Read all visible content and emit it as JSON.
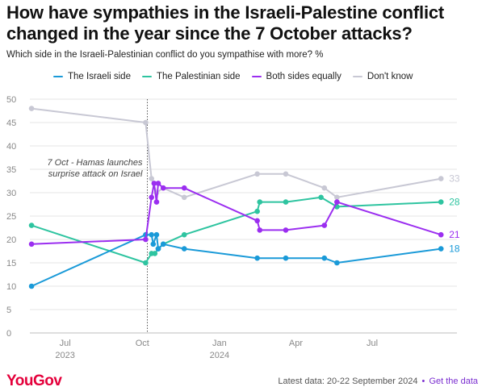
{
  "title": "How have sympathies in the Israeli-Palestine conflict changed in the year since the 7 October attacks?",
  "subtitle": "Which side in the Israeli-Palestinian conflict do you sympathise with more? %",
  "footer": {
    "logo_text": "YouGov",
    "logo_color": "#e4003b",
    "latest_data": "Latest data: 20-22 September 2024",
    "separator": "•",
    "link_text": "Get the data"
  },
  "colors": {
    "accent": "#7b2fd0"
  },
  "chart_data": {
    "type": "line",
    "ylim": [
      0,
      50
    ],
    "yticks": [
      0,
      5,
      10,
      15,
      20,
      25,
      30,
      35,
      40,
      45,
      50
    ],
    "xlim": [
      "2023-05-20",
      "2024-10-10"
    ],
    "xticks": [
      {
        "date": "2023-07-01",
        "label": "Jul",
        "year": "2023"
      },
      {
        "date": "2023-10-01",
        "label": "Oct",
        "year": ""
      },
      {
        "date": "2024-01-01",
        "label": "Jan",
        "year": "2024"
      },
      {
        "date": "2024-04-01",
        "label": "Apr",
        "year": ""
      },
      {
        "date": "2024-07-01",
        "label": "Jul",
        "year": ""
      }
    ],
    "grid": true,
    "legend_position": "top",
    "annotation": {
      "date": "2023-10-07",
      "lines": [
        "7 Oct - Hamas launches",
        "surprise attack on Israel"
      ]
    },
    "series": [
      {
        "name": "The Israeli side",
        "color": "#1a9ad8",
        "end_label": "18",
        "points": [
          [
            "2023-05-22",
            10
          ],
          [
            "2023-10-05",
            21
          ],
          [
            "2023-10-12",
            21
          ],
          [
            "2023-10-14",
            19
          ],
          [
            "2023-10-18",
            21
          ],
          [
            "2023-10-20",
            18
          ],
          [
            "2023-10-26",
            19
          ],
          [
            "2023-11-20",
            18
          ],
          [
            "2024-02-15",
            16
          ],
          [
            "2024-03-20",
            16
          ],
          [
            "2024-05-05",
            16
          ],
          [
            "2024-05-20",
            15
          ],
          [
            "2024-09-21",
            18
          ]
        ]
      },
      {
        "name": "The Palestinian side",
        "color": "#2ec4a0",
        "end_label": "28",
        "points": [
          [
            "2023-05-22",
            23
          ],
          [
            "2023-10-05",
            15
          ],
          [
            "2023-10-12",
            17
          ],
          [
            "2023-10-16",
            17
          ],
          [
            "2023-10-20",
            18
          ],
          [
            "2023-10-26",
            19
          ],
          [
            "2023-11-20",
            21
          ],
          [
            "2024-02-15",
            26
          ],
          [
            "2024-02-18",
            28
          ],
          [
            "2024-03-20",
            28
          ],
          [
            "2024-05-01",
            29
          ],
          [
            "2024-05-20",
            27
          ],
          [
            "2024-09-21",
            28
          ]
        ]
      },
      {
        "name": "Both sides equally",
        "color": "#9b2ef0",
        "end_label": "21",
        "points": [
          [
            "2023-05-22",
            19
          ],
          [
            "2023-10-05",
            20
          ],
          [
            "2023-10-12",
            29
          ],
          [
            "2023-10-15",
            32
          ],
          [
            "2023-10-18",
            28
          ],
          [
            "2023-10-20",
            32
          ],
          [
            "2023-10-26",
            31
          ],
          [
            "2023-11-20",
            31
          ],
          [
            "2024-02-15",
            24
          ],
          [
            "2024-02-18",
            22
          ],
          [
            "2024-03-20",
            22
          ],
          [
            "2024-05-05",
            23
          ],
          [
            "2024-05-20",
            28
          ],
          [
            "2024-09-21",
            21
          ]
        ]
      },
      {
        "name": "Don't know",
        "color": "#c8c8d4",
        "end_label": "33",
        "points": [
          [
            "2023-05-22",
            48
          ],
          [
            "2023-10-05",
            45
          ],
          [
            "2023-10-12",
            33
          ],
          [
            "2023-10-18",
            30
          ],
          [
            "2023-10-26",
            31
          ],
          [
            "2023-11-20",
            29
          ],
          [
            "2024-02-15",
            34
          ],
          [
            "2024-03-20",
            34
          ],
          [
            "2024-05-05",
            31
          ],
          [
            "2024-05-20",
            29
          ],
          [
            "2024-09-21",
            33
          ]
        ]
      }
    ]
  }
}
